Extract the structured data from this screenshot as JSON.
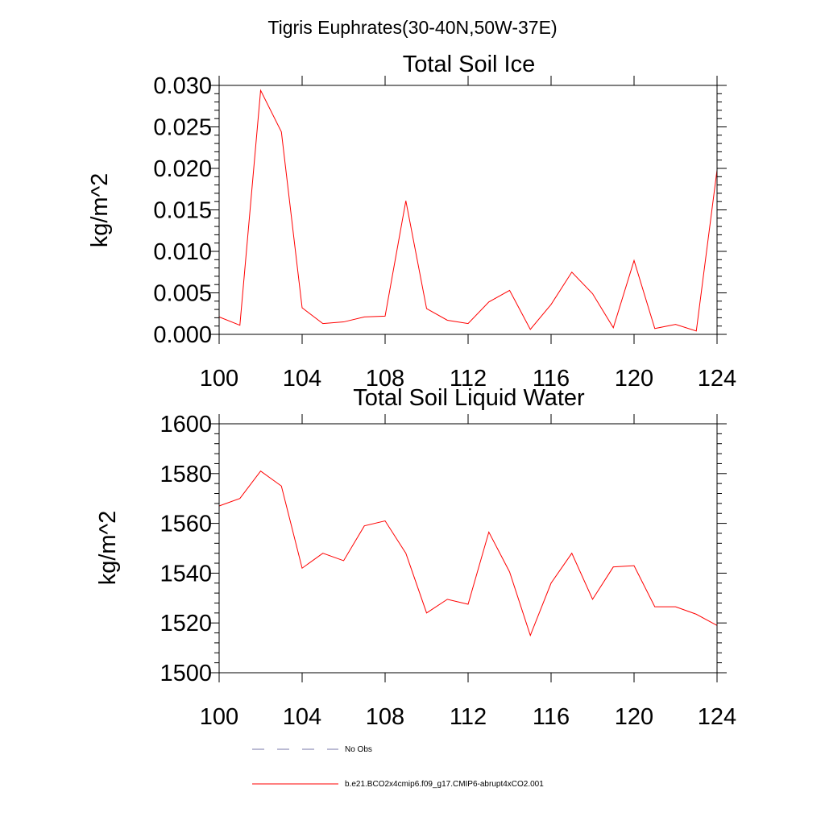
{
  "title": "Tigris Euphrates(30-40N,50W-37E)",
  "chart_data": [
    {
      "type": "line",
      "title": "Total Soil Ice",
      "xlabel": "",
      "ylabel": "kg/m^2",
      "xlim": [
        100,
        124
      ],
      "ylim": [
        0.0,
        0.03
      ],
      "xticks": [
        "100",
        "104",
        "108",
        "112",
        "116",
        "120",
        "124"
      ],
      "yticks": [
        "0.000",
        "0.005",
        "0.010",
        "0.015",
        "0.020",
        "0.025",
        "0.030"
      ],
      "series": [
        {
          "name": "b.e21.BCO2x4cmip6.f09_g17.CMIP6-abrupt4xCO2.001",
          "color": "#ff0000",
          "x": [
            100,
            101,
            102,
            103,
            104,
            105,
            106,
            107,
            108,
            109,
            110,
            111,
            112,
            113,
            114,
            115,
            116,
            117,
            118,
            119,
            120,
            121,
            122,
            123,
            124
          ],
          "values": [
            0.0021,
            0.0011,
            0.0294,
            0.0244,
            0.0032,
            0.0013,
            0.0015,
            0.0021,
            0.0022,
            0.0161,
            0.0031,
            0.0017,
            0.0013,
            0.0039,
            0.0053,
            0.0006,
            0.0036,
            0.0075,
            0.0049,
            0.0008,
            0.0089,
            0.0007,
            0.0012,
            0.0004,
            0.0198
          ]
        }
      ]
    },
    {
      "type": "line",
      "title": "Total Soil Liquid Water",
      "xlabel": "",
      "ylabel": "kg/m^2",
      "xlim": [
        100,
        124
      ],
      "ylim": [
        1500,
        1600
      ],
      "xticks": [
        "100",
        "104",
        "108",
        "112",
        "116",
        "120",
        "124"
      ],
      "yticks": [
        "1500",
        "1520",
        "1540",
        "1560",
        "1580",
        "1600"
      ],
      "series": [
        {
          "name": "b.e21.BCO2x4cmip6.f09_g17.CMIP6-abrupt4xCO2.001",
          "color": "#ff0000",
          "x": [
            100,
            101,
            102,
            103,
            104,
            105,
            106,
            107,
            108,
            109,
            110,
            111,
            112,
            113,
            114,
            115,
            116,
            117,
            118,
            119,
            120,
            121,
            122,
            123,
            124
          ],
          "values": [
            1567,
            1570,
            1581,
            1575,
            1542,
            1548,
            1545,
            1559,
            1561,
            1548,
            1524,
            1529.5,
            1527.5,
            1556.5,
            1540.5,
            1515,
            1536,
            1548,
            1529.5,
            1542.5,
            1543,
            1526.5,
            1526.5,
            1523.5,
            1519
          ]
        }
      ]
    }
  ],
  "legend": {
    "placement": "bottom",
    "entries": [
      {
        "label": "No Obs",
        "color": "#7777aa",
        "style": "dashed"
      },
      {
        "label": "b.e21.BCO2x4cmip6.f09_g17.CMIP6-abrupt4xCO2.001",
        "color": "#ff0000",
        "style": "solid"
      }
    ]
  }
}
